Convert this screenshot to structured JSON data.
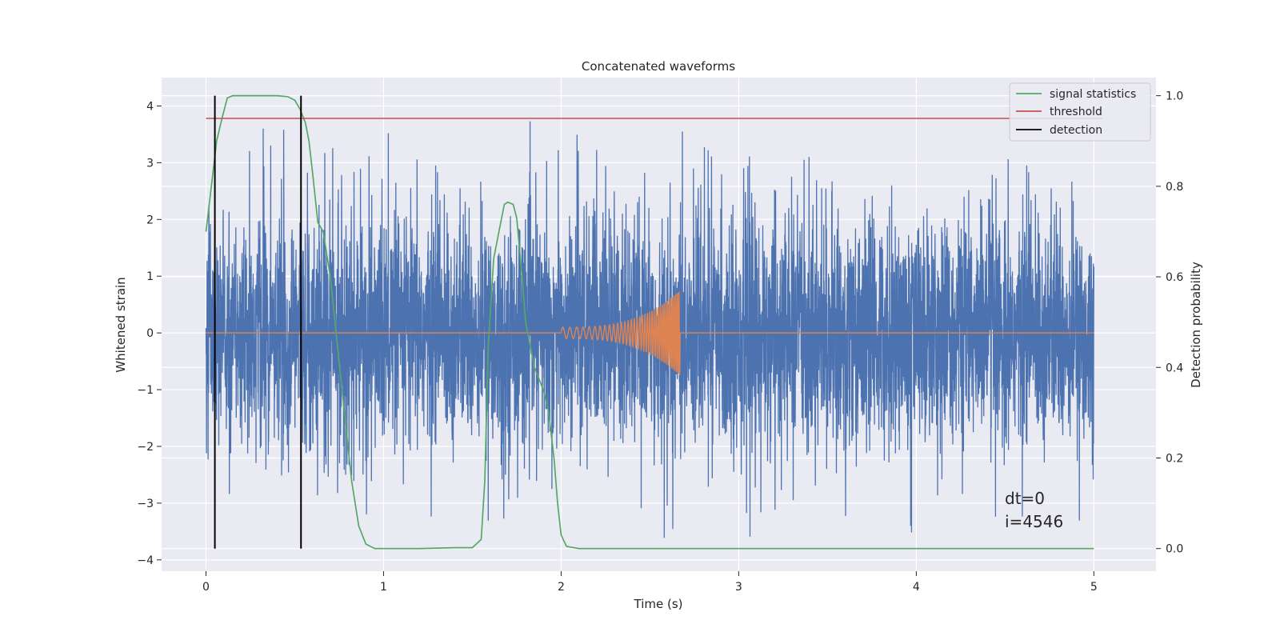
{
  "chart_data": {
    "type": "line",
    "title": "Concatenated waveforms",
    "xlabel": "Time (s)",
    "ylabel_left": "Whitened strain",
    "ylabel_right": "Detection probability",
    "xlim": [
      -0.25,
      5.35
    ],
    "ylim_left": [
      -4.2,
      4.5
    ],
    "ylim_right": [
      -0.05,
      1.04
    ],
    "x_ticks": [
      0,
      1,
      2,
      3,
      4,
      5
    ],
    "y_ticks_left": [
      4,
      3,
      2,
      1,
      0,
      -1,
      -2,
      -3,
      -4
    ],
    "y_ticks_right": [
      1.0,
      0.8,
      0.6,
      0.4,
      0.2,
      0.0
    ],
    "grid": true,
    "legend_placement": "upper right",
    "legend": [
      "signal statistics",
      "threshold",
      "detection"
    ],
    "annotation": [
      "dt=0",
      "i=4546"
    ],
    "series": [
      {
        "name": "whitened strain",
        "axis": "left",
        "kind": "noise",
        "x_range": [
          0,
          5
        ],
        "typical_amplitude": 1.3,
        "peak_range": [
          -3.8,
          4.1
        ],
        "color": "#4c72b0"
      },
      {
        "name": "injected waveform",
        "axis": "left",
        "kind": "chirp",
        "x_range": [
          2.0,
          2.67
        ],
        "amplitude_start": 0.1,
        "amplitude_end": 0.75,
        "color": "#dd8452"
      },
      {
        "name": "signal statistics",
        "axis": "right",
        "color": "#55a868",
        "x": [
          0,
          0.03,
          0.06,
          0.09,
          0.12,
          0.15,
          0.2,
          0.3,
          0.4,
          0.46,
          0.5,
          0.53,
          0.56,
          0.58,
          0.6,
          0.63,
          0.66,
          0.7,
          0.74,
          0.78,
          0.82,
          0.86,
          0.9,
          0.95,
          1.0,
          1.2,
          1.4,
          1.5,
          1.55,
          1.57,
          1.59,
          1.62,
          1.65,
          1.68,
          1.7,
          1.73,
          1.75,
          1.78,
          1.8,
          1.85,
          1.9,
          1.93,
          1.96,
          1.98,
          2.0,
          2.03,
          2.1,
          3.0,
          4.0,
          5.0
        ],
        "y": [
          0.7,
          0.8,
          0.9,
          0.95,
          0.995,
          1.0,
          1.0,
          1.0,
          1.0,
          0.998,
          0.99,
          0.97,
          0.94,
          0.9,
          0.83,
          0.72,
          0.7,
          0.6,
          0.45,
          0.3,
          0.15,
          0.05,
          0.01,
          0.0,
          0.0,
          0.0,
          0.002,
          0.002,
          0.02,
          0.15,
          0.45,
          0.64,
          0.7,
          0.76,
          0.765,
          0.76,
          0.73,
          0.6,
          0.5,
          0.4,
          0.35,
          0.3,
          0.2,
          0.1,
          0.03,
          0.005,
          0.0,
          0.0,
          0.0,
          0.0
        ]
      },
      {
        "name": "threshold",
        "axis": "right",
        "color": "#c44e52",
        "x": [
          0,
          5.05
        ],
        "y": [
          0.95,
          0.95
        ]
      },
      {
        "name": "detection",
        "axis": "right",
        "kind": "vertical",
        "color": "#000000",
        "x": [
          0.05,
          0.535
        ],
        "y_range": [
          0.0,
          1.0
        ]
      }
    ]
  }
}
